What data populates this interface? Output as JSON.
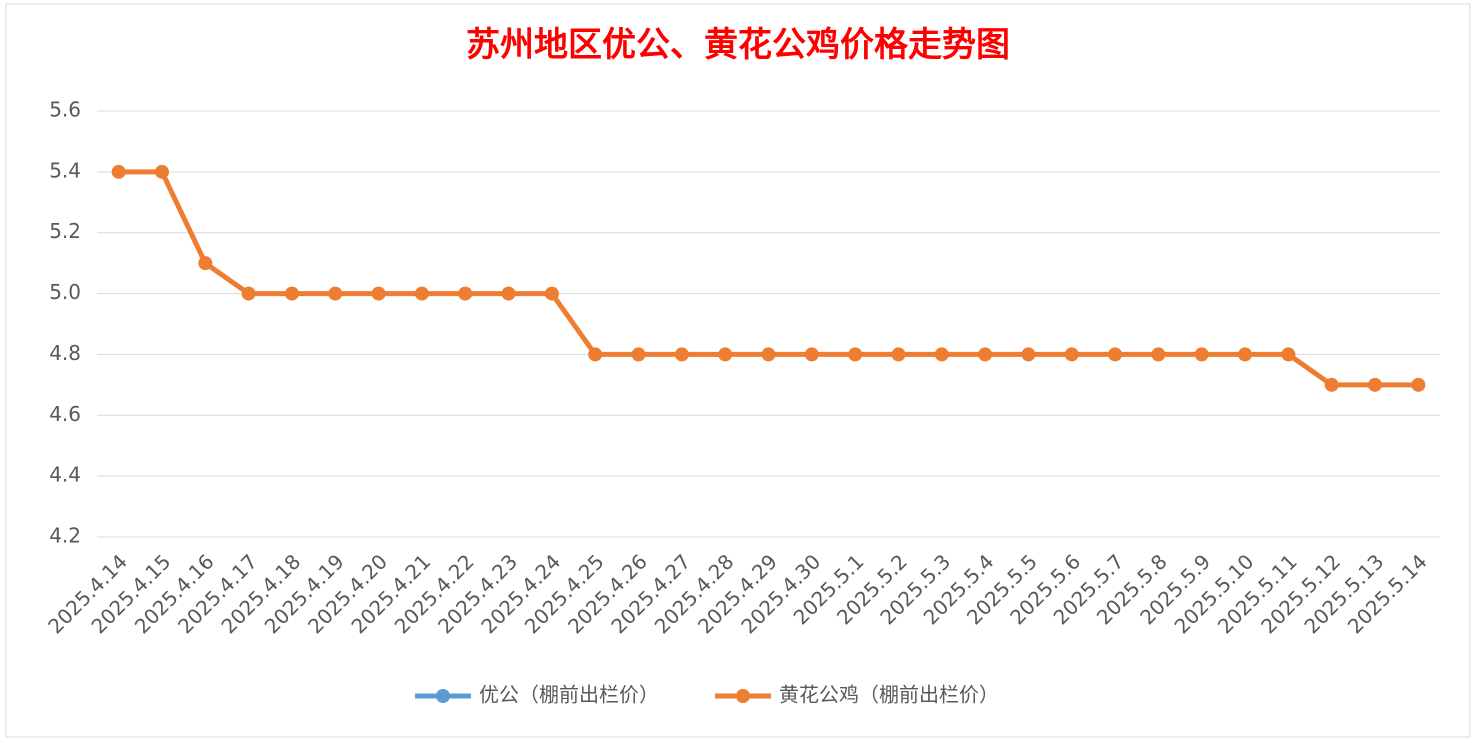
{
  "chart_data": {
    "type": "line",
    "title": "苏州地区优公、黄花公鸡价格走势图",
    "categories": [
      "2025.4.14",
      "2025.4.15",
      "2025.4.16",
      "2025.4.17",
      "2025.4.18",
      "2025.4.19",
      "2025.4.20",
      "2025.4.21",
      "2025.4.22",
      "2025.4.23",
      "2025.4.24",
      "2025.4.25",
      "2025.4.26",
      "2025.4.27",
      "2025.4.28",
      "2025.4.29",
      "2025.4.30",
      "2025.5.1",
      "2025.5.2",
      "2025.5.3",
      "2025.5.4",
      "2025.5.5",
      "2025.5.6",
      "2025.5.7",
      "2025.5.8",
      "2025.5.9",
      "2025.5.10",
      "2025.5.11",
      "2025.5.12",
      "2025.5.13",
      "2025.5.14"
    ],
    "series": [
      {
        "name": "优公（棚前出栏价）",
        "color": "#5b9bd5",
        "values": [
          null,
          null,
          null,
          null,
          null,
          null,
          null,
          null,
          null,
          null,
          null,
          null,
          null,
          null,
          null,
          null,
          null,
          null,
          null,
          null,
          null,
          null,
          null,
          null,
          null,
          null,
          null,
          null,
          null,
          null,
          null
        ]
      },
      {
        "name": "黄花公鸡（棚前出栏价）",
        "color": "#ed7d31",
        "values": [
          5.4,
          5.4,
          5.1,
          5,
          5,
          5,
          5,
          5,
          5,
          5,
          5,
          4.8,
          4.8,
          4.8,
          4.8,
          4.8,
          4.8,
          4.8,
          4.8,
          4.8,
          4.8,
          4.8,
          4.8,
          4.8,
          4.8,
          4.8,
          4.8,
          4.8,
          4.7,
          4.7,
          4.7
        ]
      }
    ],
    "ylim": [
      4.2,
      5.6
    ],
    "yticks": [
      4.2,
      4.4,
      4.6,
      4.8,
      {
        "value": 5,
        "label": "5.0"
      },
      5.2,
      5.4,
      5.6
    ],
    "grid": true,
    "legend": "bottom"
  }
}
